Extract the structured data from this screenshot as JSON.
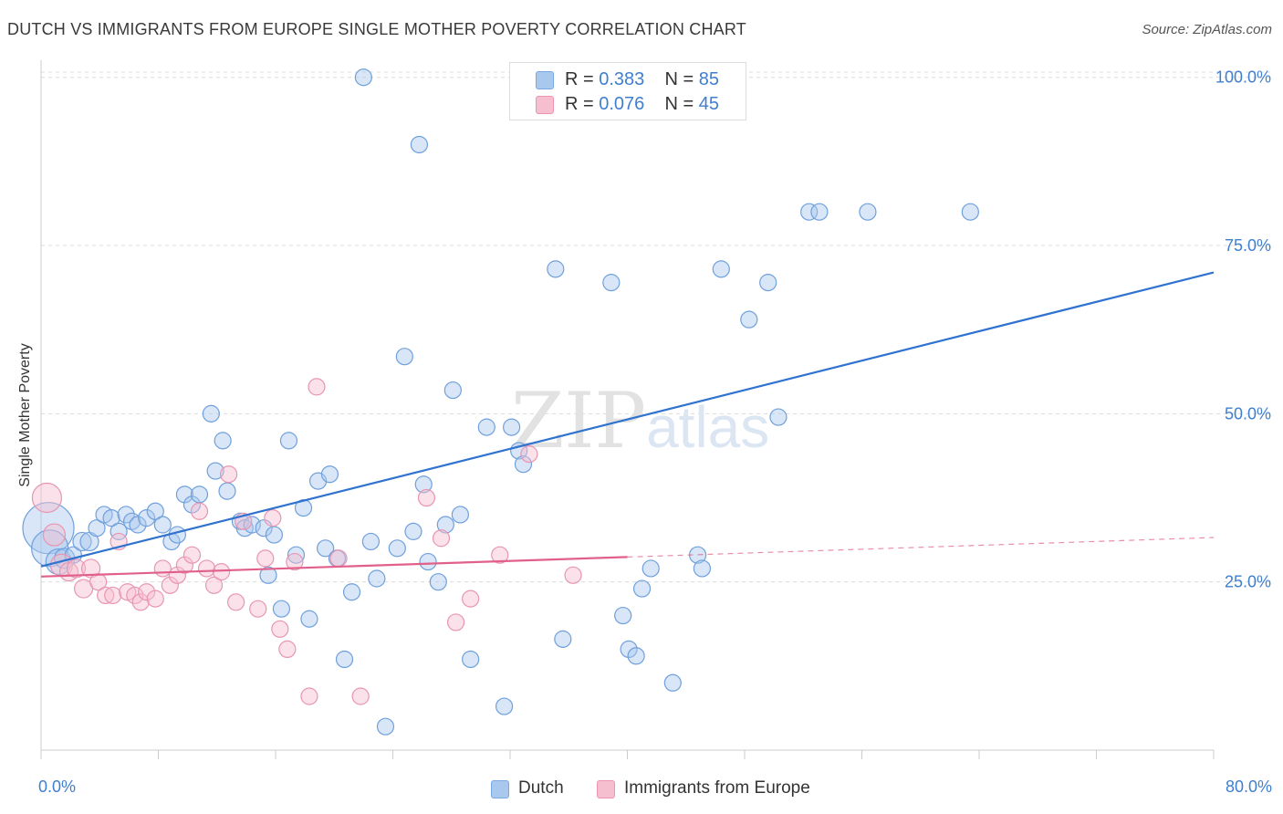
{
  "title": "DUTCH VS IMMIGRANTS FROM EUROPE SINGLE MOTHER POVERTY CORRELATION CHART",
  "source": "Source: ZipAtlas.com",
  "watermark": "ZIPatlas",
  "colors": {
    "dutch": "#a9c8ee",
    "dutch_line": "#2f72cf",
    "immigrants": "#f6bfd0",
    "immigrants_line": "#e0608a",
    "tick_text": "#3f7fd0"
  },
  "legend_stats": [
    {
      "r_label": "R = ",
      "r_value": "0.383",
      "n_label": "N = ",
      "n_value": "85"
    },
    {
      "r_label": "R = ",
      "r_value": "0.076",
      "n_label": "N = ",
      "n_value": "45"
    }
  ],
  "chart_data": {
    "type": "scatter",
    "title": "DUTCH VS IMMIGRANTS FROM EUROPE SINGLE MOTHER POVERTY CORRELATION CHART",
    "xlabel": "",
    "ylabel": "Single Mother Poverty",
    "xlim": [
      0,
      80
    ],
    "ylim": [
      0,
      102
    ],
    "x_tick_labels": [
      "0.0%",
      "80.0%"
    ],
    "y_ticks": [
      25,
      50,
      75,
      100
    ],
    "y_tick_labels": [
      "25.0%",
      "50.0%",
      "75.0%",
      "100.0%"
    ],
    "grid": true,
    "legend": "bottom",
    "series": [
      {
        "name": "Dutch",
        "points": [
          [
            0.5,
            33,
            28
          ],
          [
            0.6,
            30,
            20
          ],
          [
            1.2,
            28,
            14
          ],
          [
            1.6,
            28.5,
            11
          ],
          [
            2.2,
            29,
            9
          ],
          [
            2.8,
            31,
            10
          ],
          [
            3.3,
            31,
            10
          ],
          [
            3.8,
            33,
            9
          ],
          [
            4.3,
            35,
            9
          ],
          [
            4.8,
            34.5,
            9
          ],
          [
            5.3,
            32.5,
            9
          ],
          [
            5.8,
            35,
            9
          ],
          [
            6.2,
            34,
            9
          ],
          [
            6.6,
            33.5,
            9
          ],
          [
            7.2,
            34.5,
            9
          ],
          [
            7.8,
            35.5,
            9
          ],
          [
            8.3,
            33.5,
            9
          ],
          [
            8.9,
            31,
            9
          ],
          [
            9.3,
            32,
            9
          ],
          [
            9.8,
            38,
            9
          ],
          [
            10.3,
            36.5,
            9
          ],
          [
            10.8,
            38,
            9
          ],
          [
            11.6,
            50,
            9
          ],
          [
            11.9,
            41.5,
            9
          ],
          [
            12.4,
            46,
            9
          ],
          [
            12.7,
            38.5,
            9
          ],
          [
            13.6,
            34,
            9
          ],
          [
            13.9,
            33,
            9
          ],
          [
            14.4,
            33.5,
            9
          ],
          [
            15.2,
            33,
            9
          ],
          [
            15.5,
            26,
            9
          ],
          [
            15.9,
            32,
            9
          ],
          [
            16.4,
            21,
            9
          ],
          [
            16.9,
            46,
            9
          ],
          [
            17.4,
            29,
            9
          ],
          [
            17.9,
            36,
            9
          ],
          [
            18.3,
            19.5,
            9
          ],
          [
            18.9,
            40,
            9
          ],
          [
            19.7,
            41,
            9
          ],
          [
            19.4,
            30,
            9
          ],
          [
            20.2,
            28.5,
            9
          ],
          [
            20.7,
            13.5,
            9
          ],
          [
            21.2,
            23.5,
            9
          ],
          [
            22.0,
            100,
            9
          ],
          [
            22.5,
            31,
            9
          ],
          [
            22.9,
            25.5,
            9
          ],
          [
            23.5,
            3.5,
            9
          ],
          [
            24.3,
            30,
            9
          ],
          [
            24.8,
            58.5,
            9
          ],
          [
            25.4,
            32.5,
            9
          ],
          [
            25.8,
            90,
            9
          ],
          [
            26.1,
            39.5,
            9
          ],
          [
            26.4,
            28,
            9
          ],
          [
            27.1,
            25,
            9
          ],
          [
            27.6,
            33.5,
            9
          ],
          [
            28.1,
            53.5,
            9
          ],
          [
            28.6,
            35,
            9
          ],
          [
            29.3,
            13.5,
            9
          ],
          [
            30.4,
            48,
            9
          ],
          [
            31.6,
            6.5,
            9
          ],
          [
            32.1,
            48,
            9
          ],
          [
            32.6,
            44.5,
            9
          ],
          [
            32.9,
            42.5,
            9
          ],
          [
            34.4,
            100,
            9
          ],
          [
            35.1,
            71.5,
            9
          ],
          [
            35.6,
            16.5,
            9
          ],
          [
            36.5,
            100,
            9
          ],
          [
            37.4,
            100,
            9
          ],
          [
            38.9,
            69.5,
            9
          ],
          [
            39.7,
            20,
            9
          ],
          [
            40.1,
            15,
            9
          ],
          [
            40.6,
            14,
            9
          ],
          [
            41.0,
            24,
            9
          ],
          [
            41.6,
            27,
            9
          ],
          [
            43.1,
            10,
            9
          ],
          [
            44.8,
            29,
            9
          ],
          [
            45.1,
            27,
            9
          ],
          [
            46.4,
            71.5,
            9
          ],
          [
            48.3,
            64,
            9
          ],
          [
            49.6,
            69.5,
            9
          ],
          [
            50.3,
            49.5,
            9
          ],
          [
            52.4,
            80,
            9
          ],
          [
            53.1,
            80,
            9
          ],
          [
            56.4,
            80,
            9
          ],
          [
            63.4,
            80,
            9
          ]
        ],
        "trend": [
          [
            0,
            27.3
          ],
          [
            80,
            71
          ]
        ]
      },
      {
        "name": "Immigrants from Europe",
        "points": [
          [
            0.4,
            37.5,
            16
          ],
          [
            0.9,
            32,
            12
          ],
          [
            1.4,
            27.5,
            12
          ],
          [
            1.9,
            26.5,
            10
          ],
          [
            2.4,
            27,
            10
          ],
          [
            2.9,
            24,
            10
          ],
          [
            3.4,
            27,
            10
          ],
          [
            3.9,
            25,
            9
          ],
          [
            4.4,
            23,
            9
          ],
          [
            4.9,
            23,
            9
          ],
          [
            5.3,
            31,
            9
          ],
          [
            5.9,
            23.5,
            9
          ],
          [
            6.4,
            23,
            9
          ],
          [
            6.8,
            22,
            9
          ],
          [
            7.2,
            23.5,
            9
          ],
          [
            7.8,
            22.5,
            9
          ],
          [
            8.3,
            27,
            9
          ],
          [
            8.8,
            24.5,
            9
          ],
          [
            9.3,
            26,
            9
          ],
          [
            9.8,
            27.5,
            9
          ],
          [
            10.3,
            29,
            9
          ],
          [
            10.8,
            35.5,
            9
          ],
          [
            11.3,
            27,
            9
          ],
          [
            11.8,
            24.5,
            9
          ],
          [
            12.3,
            26.5,
            9
          ],
          [
            12.8,
            41,
            9
          ],
          [
            13.3,
            22,
            9
          ],
          [
            13.8,
            34,
            9
          ],
          [
            14.8,
            21,
            9
          ],
          [
            15.3,
            28.5,
            9
          ],
          [
            15.8,
            34.5,
            9
          ],
          [
            16.3,
            18,
            9
          ],
          [
            16.8,
            15,
            9
          ],
          [
            17.3,
            28,
            9
          ],
          [
            18.3,
            8,
            9
          ],
          [
            18.8,
            54,
            9
          ],
          [
            20.3,
            28.5,
            9
          ],
          [
            21.8,
            8,
            9
          ],
          [
            26.3,
            37.5,
            9
          ],
          [
            27.3,
            31.5,
            9
          ],
          [
            28.3,
            19,
            9
          ],
          [
            29.3,
            22.5,
            9
          ],
          [
            31.3,
            29,
            9
          ],
          [
            33.3,
            44,
            9
          ],
          [
            36.3,
            26,
            9
          ]
        ],
        "trend_solid": [
          [
            0,
            25.8
          ],
          [
            40,
            28.7
          ]
        ],
        "trend_dashed": [
          [
            40,
            28.7
          ],
          [
            80,
            31.6
          ]
        ]
      }
    ]
  }
}
